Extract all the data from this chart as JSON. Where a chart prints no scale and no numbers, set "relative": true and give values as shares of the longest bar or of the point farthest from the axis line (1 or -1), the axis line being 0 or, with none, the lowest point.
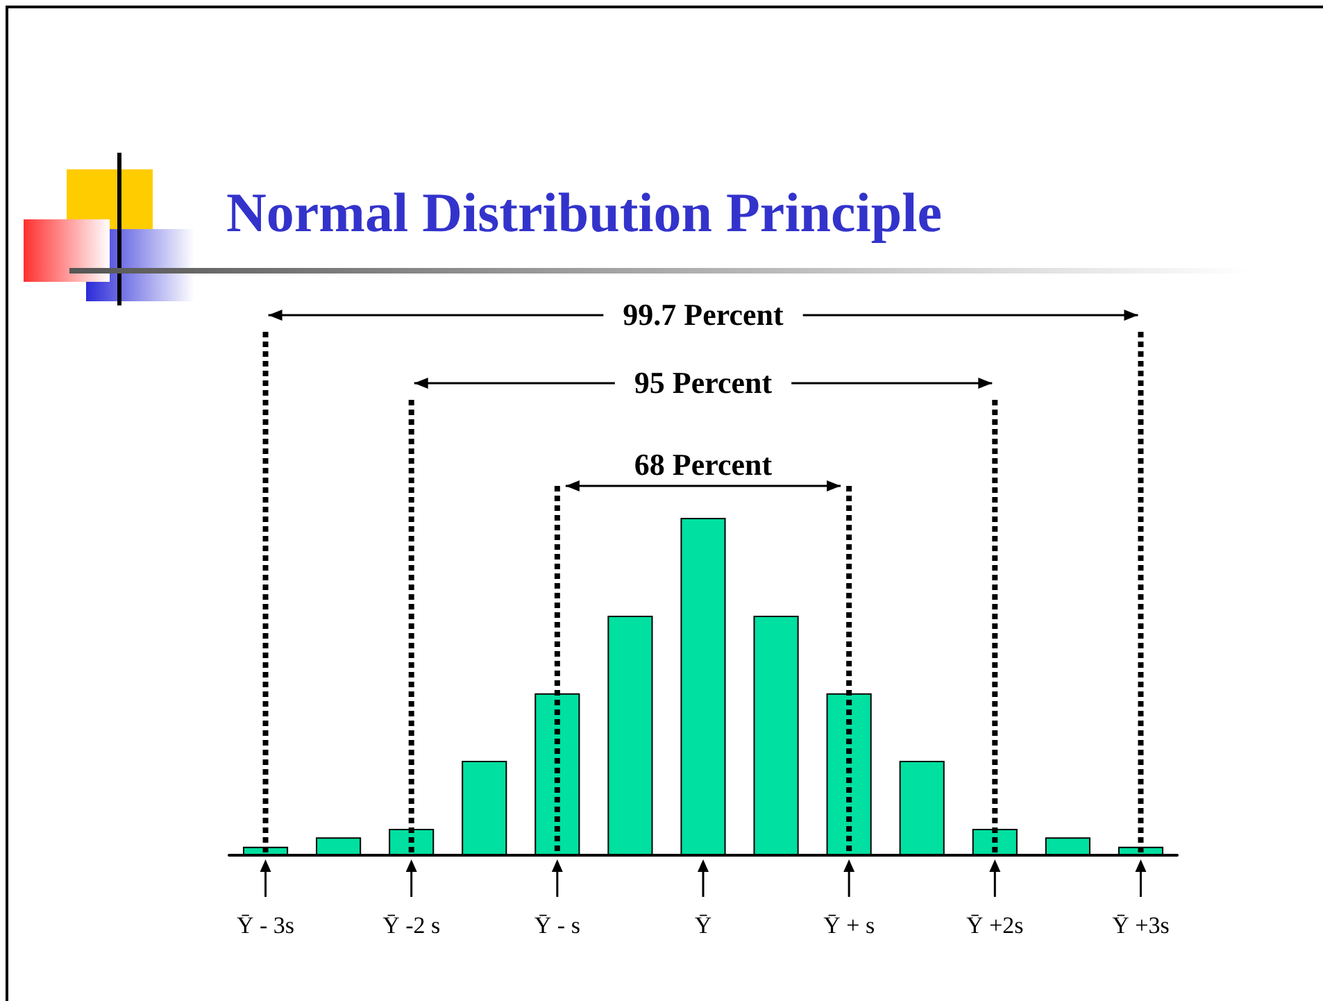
{
  "chart_data": {
    "type": "bar",
    "title": "Normal Distribution Principle",
    "relative": true,
    "color": "#00e0a0",
    "categories": [
      "Ȳ - 3s",
      null,
      "Ȳ -2 s",
      null,
      "Ȳ - s",
      null,
      "Ȳ",
      null,
      "Ȳ + s",
      null,
      "Ȳ +2s",
      null,
      "Ȳ +3s"
    ],
    "values": [
      0.025,
      0.053,
      0.078,
      0.28,
      0.48,
      0.71,
      1,
      0.71,
      0.48,
      0.28,
      0.078,
      0.053,
      0.025
    ],
    "annotations": [
      "99.7 Percent",
      "95 Percent",
      "68 Percent"
    ],
    "ref_lines": [
      {
        "axis": "x",
        "value": "Ȳ - 3s",
        "line_style": "dotted",
        "color": "#000000"
      },
      {
        "axis": "x",
        "value": "Ȳ +3s",
        "line_style": "dotted",
        "color": "#000000"
      },
      {
        "axis": "x",
        "value": "Ȳ -2 s",
        "line_style": "dotted",
        "color": "#000000"
      },
      {
        "axis": "x",
        "value": "Ȳ +2s",
        "line_style": "dotted",
        "color": "#000000"
      },
      {
        "axis": "x",
        "value": "Ȳ - s",
        "line_style": "dotted",
        "color": "#000000"
      },
      {
        "axis": "x",
        "value": "Ȳ + s",
        "line_style": "dotted",
        "color": "#000000"
      }
    ],
    "grid": false
  }
}
